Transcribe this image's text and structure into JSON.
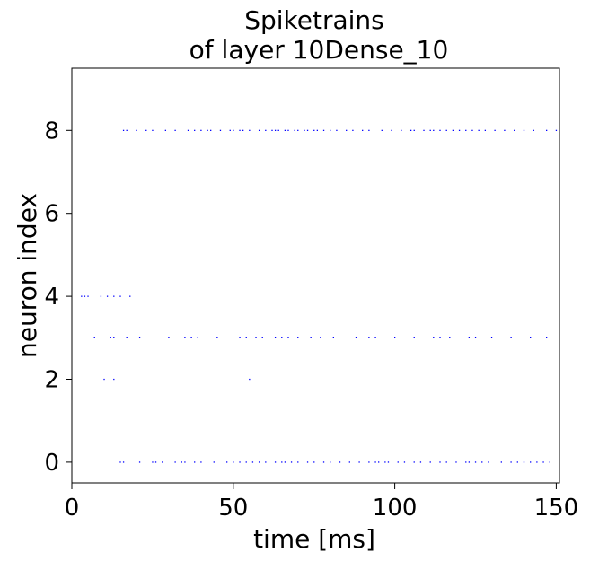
{
  "chart_data": {
    "type": "scatter",
    "title_line1": "Spiketrains",
    "title_line2": "of layer 10Dense_10",
    "xlabel": "time [ms]",
    "ylabel": "neuron index",
    "xlim": [
      0,
      151
    ],
    "ylim": [
      -0.5,
      9.5
    ],
    "x_ticks": [
      0,
      50,
      100,
      150
    ],
    "y_ticks": [
      0,
      2,
      4,
      6,
      8
    ],
    "grid": false,
    "marker_color": "#0000ff",
    "series": [
      {
        "neuron": 0,
        "x": [
          15,
          16,
          21,
          25,
          26,
          28,
          32,
          34,
          35,
          38,
          40,
          44,
          48,
          50,
          52,
          54,
          56,
          58,
          60,
          63,
          65,
          66,
          68,
          70,
          73,
          75,
          78,
          80,
          83,
          86,
          89,
          92,
          94,
          95,
          97,
          98,
          101,
          103,
          106,
          108,
          111,
          114,
          116,
          119,
          122,
          123,
          125,
          127,
          129,
          133,
          136,
          138,
          140,
          142,
          144,
          146,
          148
        ]
      },
      {
        "neuron": 2,
        "x": [
          10,
          13,
          55
        ]
      },
      {
        "neuron": 3,
        "x": [
          7,
          12,
          13,
          17,
          21,
          30,
          35,
          37,
          39,
          45,
          52,
          54,
          57,
          59,
          63,
          65,
          67,
          70,
          74,
          77,
          81,
          88,
          92,
          94,
          100,
          106,
          112,
          114,
          117,
          123,
          125,
          130,
          136,
          142,
          147
        ]
      },
      {
        "neuron": 4,
        "x": [
          3,
          4,
          5,
          9,
          11,
          13,
          15,
          18
        ]
      },
      {
        "neuron": 8,
        "x": [
          16,
          17,
          20,
          23,
          25,
          29,
          32,
          36,
          38,
          40,
          42,
          43,
          46,
          49,
          50,
          52,
          53,
          55,
          58,
          60,
          62,
          63,
          64,
          66,
          67,
          69,
          70,
          72,
          73,
          75,
          76,
          78,
          80,
          82,
          85,
          87,
          90,
          92,
          96,
          99,
          102,
          105,
          106,
          109,
          111,
          112,
          114,
          116,
          118,
          120,
          122,
          124,
          126,
          128,
          131,
          134,
          137,
          140,
          143,
          147,
          150
        ]
      }
    ]
  }
}
